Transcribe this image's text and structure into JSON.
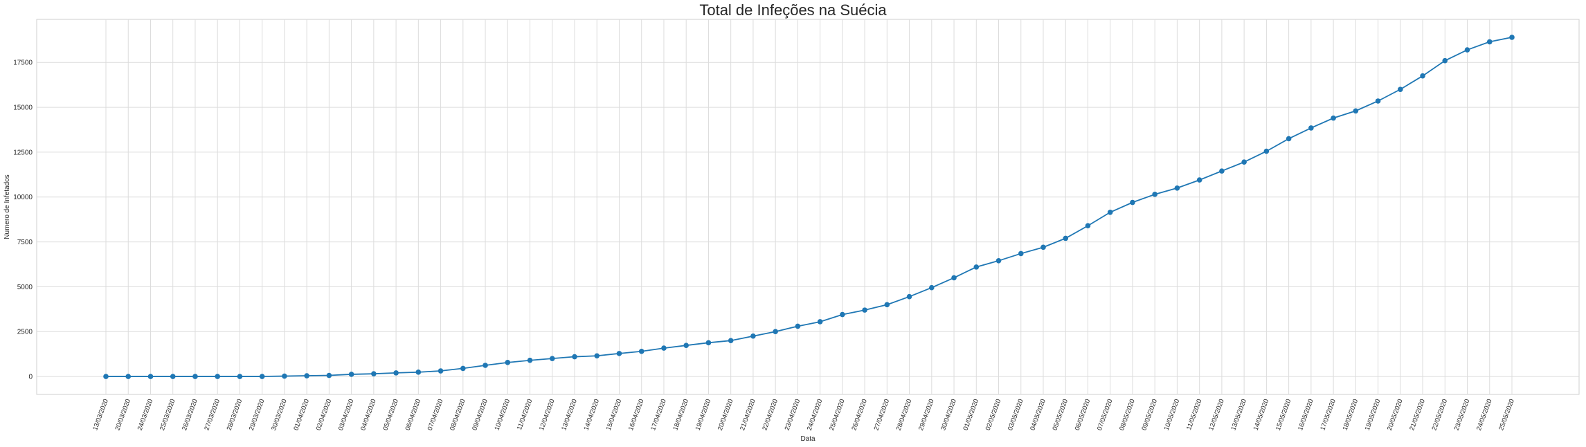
{
  "chart_data": {
    "type": "line",
    "title": "Total de Infeções na Suécia",
    "xlabel": "Data",
    "ylabel": "Numero de Infetados",
    "ylim": [
      -1000,
      19900
    ],
    "yticks": [
      0,
      2500,
      5000,
      7500,
      10000,
      12500,
      15000,
      17500
    ],
    "grid": true,
    "line_color": "#1f77b4",
    "categories": [
      "13/03/2020",
      "20/03/2020",
      "24/03/2020",
      "25/03/2020",
      "26/03/2020",
      "27/03/2020",
      "28/03/2020",
      "29/03/2020",
      "30/03/2020",
      "01/04/2020",
      "02/04/2020",
      "03/04/2020",
      "04/04/2020",
      "05/04/2020",
      "06/04/2020",
      "07/04/2020",
      "08/04/2020",
      "09/04/2020",
      "10/04/2020",
      "11/04/2020",
      "12/04/2020",
      "13/04/2020",
      "14/04/2020",
      "15/04/2020",
      "16/04/2020",
      "17/04/2020",
      "18/04/2020",
      "19/04/2020",
      "20/04/2020",
      "21/04/2020",
      "22/04/2020",
      "23/04/2020",
      "24/04/2020",
      "25/04/2020",
      "26/04/2020",
      "27/04/2020",
      "28/04/2020",
      "29/04/2020",
      "30/04/2020",
      "01/05/2020",
      "02/05/2020",
      "03/05/2020",
      "04/05/2020",
      "05/05/2020",
      "06/05/2020",
      "07/05/2020",
      "08/05/2020",
      "09/05/2020",
      "10/05/2020",
      "11/05/2020",
      "12/05/2020",
      "13/05/2020",
      "14/05/2020",
      "15/05/2020",
      "16/05/2020",
      "17/05/2020",
      "18/05/2020",
      "19/05/2020",
      "20/05/2020",
      "21/05/2020",
      "22/05/2020",
      "23/05/2020",
      "24/05/2020",
      "25/05/2020"
    ],
    "values": [
      0,
      0,
      0,
      0,
      0,
      0,
      0,
      0,
      20,
      40,
      60,
      120,
      150,
      200,
      240,
      310,
      450,
      620,
      780,
      900,
      1000,
      1100,
      1150,
      1280,
      1400,
      1580,
      1730,
      1880,
      2000,
      2250,
      2500,
      2800,
      3050,
      3450,
      3700,
      4000,
      4450,
      4950,
      5500,
      6100,
      6450,
      6850,
      7200,
      7700,
      8400,
      9150,
      9700,
      10150,
      10500,
      10950,
      11450,
      11950,
      12550,
      13250,
      13850,
      14400,
      14800,
      15350,
      16000,
      16750,
      17600,
      18200,
      18650,
      18900
    ]
  }
}
